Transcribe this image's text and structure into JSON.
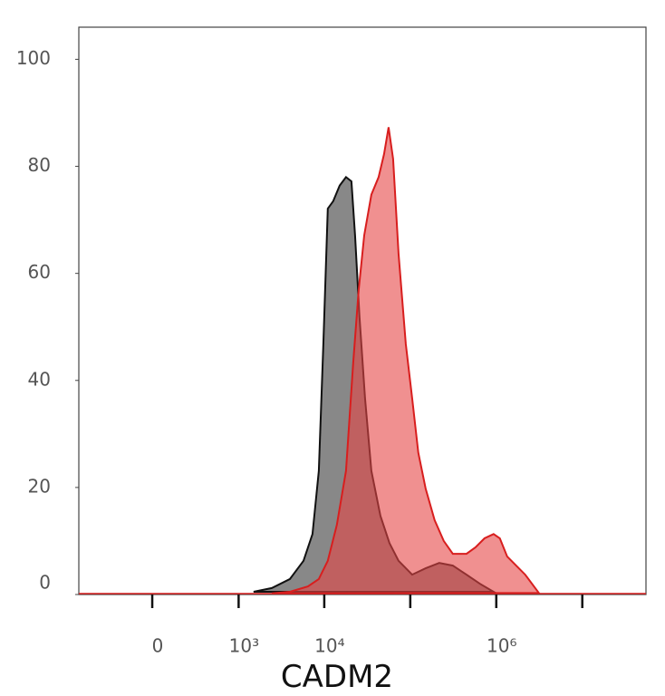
{
  "chart_data": {
    "type": "histogram-overlay",
    "x_label": "CADM2",
    "xscale": "asinh",
    "xlim": [
      -700,
      55000000
    ],
    "ylim": [
      0,
      106
    ],
    "xticks": [
      0,
      {
        "value": 1000,
        "label": "10³"
      },
      {
        "value": 10000,
        "label": "10⁴"
      },
      {
        "value": 100000,
        "label": null
      },
      {
        "value": 1000000,
        "label": "10⁶"
      },
      {
        "value": 10000000,
        "label": null
      }
    ],
    "yticks": [
      0,
      20,
      40,
      60,
      80,
      100
    ],
    "series": [
      {
        "color": "#888888",
        "edge_color": "#111111",
        "x": [
          1500,
          2450,
          3980,
          5730,
          7300,
          8650,
          9760,
          11000,
          12700,
          15100,
          17900,
          20700,
          22800,
          25700,
          29800,
          35300,
          45000,
          57300,
          73000,
          105000,
          151000,
          217000,
          312000,
          450000,
          647000,
          931000
        ],
        "values": [
          0.5,
          1.2,
          2.9,
          6.3,
          11.3,
          23.1,
          46.8,
          72.1,
          73.5,
          76.4,
          78.0,
          77.2,
          67.1,
          51.9,
          36.7,
          23.1,
          14.7,
          9.6,
          6.3,
          3.7,
          4.9,
          5.9,
          5.4,
          3.7,
          2.0,
          0.5
        ]
      },
      {
        "color": "#e64646",
        "edge_color": "#d81e1e",
        "x": [
          2450,
          3980,
          6460,
          8650,
          11000,
          14000,
          17900,
          21700,
          25100,
          29100,
          35300,
          42800,
          49500,
          55900,
          63100,
          73000,
          88600,
          105000,
          124000,
          151000,
          192000,
          245000,
          312000,
          450000,
          573000,
          730000,
          931000,
          1100000,
          1340000,
          1700000,
          2170000,
          3120000
        ],
        "values": [
          0.2,
          0.5,
          1.5,
          2.9,
          6.3,
          13.0,
          23.1,
          43.4,
          56.9,
          67.1,
          74.7,
          78.0,
          82.3,
          87.3,
          81.4,
          63.7,
          46.8,
          36.7,
          26.5,
          19.8,
          13.9,
          10.0,
          7.6,
          7.6,
          8.8,
          10.5,
          11.3,
          10.5,
          7.1,
          5.4,
          3.7,
          0.3
        ]
      }
    ]
  }
}
